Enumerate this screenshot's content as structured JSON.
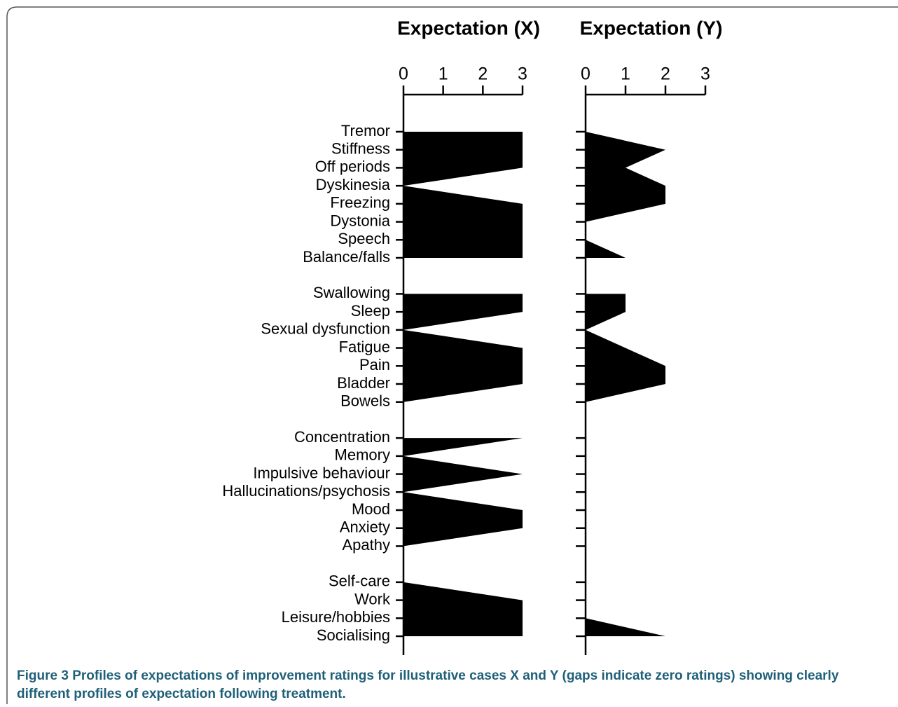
{
  "chart_data": [
    {
      "type": "area",
      "title": "Expectation (X)",
      "categories": [
        "Tremor",
        "Stiffness",
        "Off periods",
        "Dyskinesia",
        "Freezing",
        "Dystonia",
        "Speech",
        "Balance/falls",
        null,
        "Swallowing",
        "Sleep",
        "Sexual dysfunction",
        "Fatigue",
        "Pain",
        "Bladder",
        "Bowels",
        null,
        "Concentration",
        "Memory",
        "Impulsive behaviour",
        "Hallucinations/psychosis",
        "Mood",
        "Anxiety",
        "Apathy",
        null,
        "Self-care",
        "Work",
        "Leisure/hobbies",
        "Socialising"
      ],
      "values": [
        3,
        3,
        3,
        0,
        3,
        3,
        3,
        3,
        null,
        3,
        3,
        0,
        3,
        3,
        3,
        0,
        null,
        3,
        0,
        3,
        0,
        3,
        3,
        0,
        null,
        0,
        3,
        3,
        3
      ],
      "color": "#000000",
      "xlim": [
        0,
        3
      ],
      "xticks": [
        0,
        1,
        2,
        3
      ]
    },
    {
      "type": "area",
      "title": "Expectation (Y)",
      "values": [
        0,
        2,
        1,
        2,
        2,
        0,
        0,
        1,
        null,
        1,
        1,
        0,
        1,
        2,
        2,
        0,
        null,
        0,
        0,
        0,
        0,
        0,
        0,
        0,
        null,
        0,
        0,
        0,
        2
      ],
      "color": "#000000",
      "xlim": [
        0,
        3
      ],
      "xticks": [
        0,
        1,
        2,
        3
      ]
    }
  ],
  "caption": {
    "label": "Figure 3",
    "text": "Profiles of expectations of improvement ratings for illustrative cases X and Y (gaps indicate zero ratings) showing clearly different profiles of expectation following treatment."
  }
}
